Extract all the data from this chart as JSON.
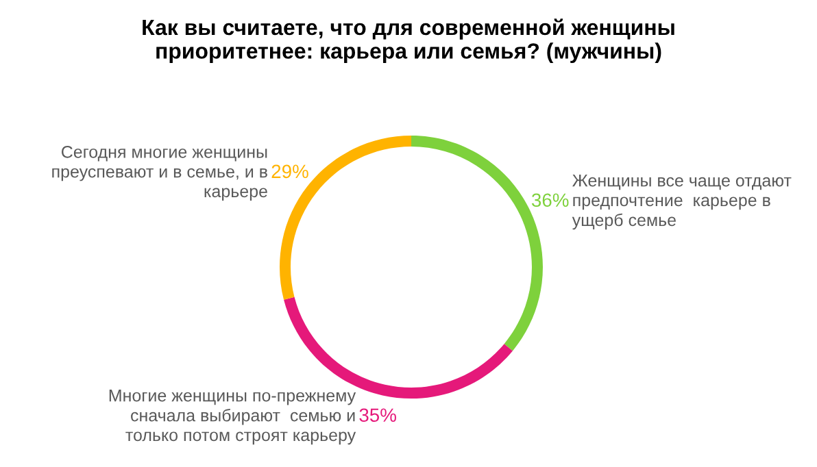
{
  "chart_data": {
    "type": "donut",
    "title": "Как вы считаете, что для современной женщины\nприоритетнее: карьера или семья? (мужчины)",
    "categories": [
      "Женщины все чаще отдают\nпредпочтение  карьере в\nущерб семье",
      "Многие женщины по-прежнему\nсначала выбирают  семью и\nтолько потом строят карьеру",
      "Сегодня многие женщины\nпреуспевают и в семье, и в\nкарьере"
    ],
    "values": [
      36,
      35,
      29
    ],
    "colors": [
      "#7ed13c",
      "#e5197a",
      "#ffb300"
    ],
    "value_labels": [
      "36%",
      "35%",
      "29%"
    ]
  }
}
